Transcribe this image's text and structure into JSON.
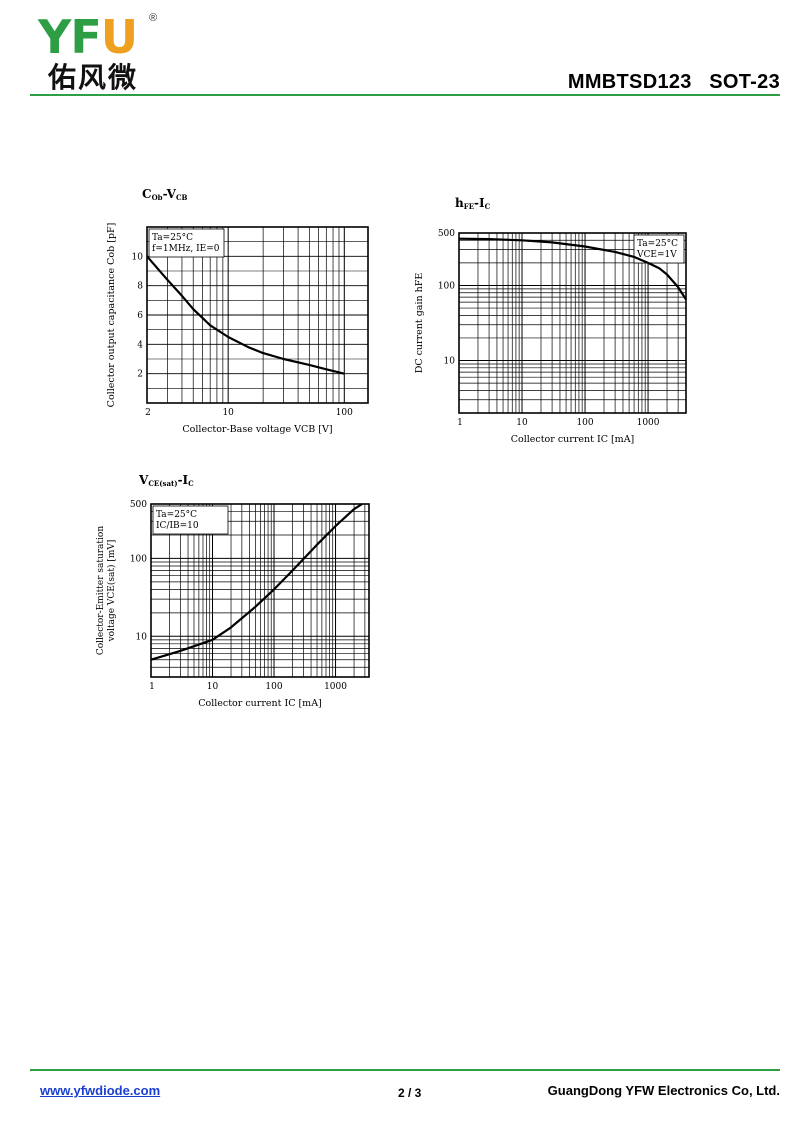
{
  "header": {
    "logo_letters": [
      "Y",
      "F",
      "U"
    ],
    "logo_registered": "®",
    "logo_cn": "佑风微",
    "part": "MMBTSD123   SOT-23"
  },
  "footer": {
    "url": "www.yfwdiode.com",
    "page": "2 / 3",
    "company": "GuangDong YFW Electronics Co, Ltd."
  },
  "chart_titles": {
    "c1": {
      "main": "C",
      "sub1": "Ob",
      "mid": "-V",
      "sub2": "CB"
    },
    "c2": {
      "main": "h",
      "sub1": "FE",
      "mid": "-I",
      "sub2": "C"
    },
    "c3": {
      "main": "V",
      "sub1": "CE(sat)",
      "mid": "-I",
      "sub2": "C"
    }
  },
  "chart_data": [
    {
      "type": "line",
      "title": "COb-VCB",
      "xlabel": "Collector-Base voltage VCB [V]",
      "ylabel": "Collector output capacitance Cob [pF]",
      "xscale": "log",
      "yscale": "linear",
      "xlim": [
        2,
        160
      ],
      "ylim": [
        0,
        12
      ],
      "xticks": [
        2,
        10,
        100
      ],
      "xtick_labels": [
        "2",
        "10",
        "100"
      ],
      "yticks": [
        2,
        4,
        6,
        8,
        10
      ],
      "ytick_labels": [
        "2",
        "4",
        "6",
        "8",
        "10"
      ],
      "annotation": [
        "Ta=25°C",
        "f=1MHz,  IE=0"
      ],
      "series": [
        {
          "x": [
            2,
            3,
            4,
            5,
            7,
            10,
            15,
            20,
            30,
            50,
            70,
            100
          ],
          "values": [
            10.0,
            8.4,
            7.3,
            6.4,
            5.3,
            4.5,
            3.8,
            3.4,
            3.0,
            2.6,
            2.3,
            2.0
          ]
        }
      ]
    },
    {
      "type": "line",
      "title": "hFE-IC",
      "xlabel": "Collector current IC [mA]",
      "ylabel": "DC current gain hFE",
      "xscale": "log",
      "yscale": "log",
      "xlim": [
        1,
        4000
      ],
      "ylim": [
        2,
        500
      ],
      "xticks": [
        1,
        10,
        100,
        1000
      ],
      "xtick_labels": [
        "1",
        "10",
        "100",
        "1000"
      ],
      "yticks": [
        10,
        100,
        500
      ],
      "ytick_labels": [
        "10",
        "100",
        "500"
      ],
      "annotation": [
        "Ta=25°C",
        "VCE=1V"
      ],
      "series": [
        {
          "x": [
            1,
            3,
            10,
            30,
            100,
            300,
            600,
            1000,
            1500,
            2000,
            3000,
            4000
          ],
          "values": [
            420,
            415,
            400,
            375,
            330,
            280,
            240,
            200,
            170,
            140,
            95,
            65
          ]
        }
      ]
    },
    {
      "type": "line",
      "title": "VCE(sat)-IC",
      "xlabel": "Collector current IC [mA]",
      "ylabel": "Collector-Emitter saturation voltage VCE(sat) [mV]",
      "xscale": "log",
      "yscale": "log",
      "xlim": [
        1,
        3500
      ],
      "ylim": [
        3,
        500
      ],
      "xticks": [
        1,
        10,
        100,
        1000
      ],
      "xtick_labels": [
        "1",
        "10",
        "100",
        "1000"
      ],
      "yticks": [
        10,
        100,
        500
      ],
      "ytick_labels": [
        "10",
        "100",
        "500"
      ],
      "annotation": [
        "Ta=25°C",
        "IC/IB=10"
      ],
      "series": [
        {
          "x": [
            1,
            3,
            10,
            20,
            50,
            100,
            200,
            500,
            1000,
            2000,
            2700
          ],
          "values": [
            5,
            6.5,
            9,
            13,
            24,
            40,
            70,
            150,
            260,
            430,
            520
          ]
        }
      ]
    }
  ]
}
